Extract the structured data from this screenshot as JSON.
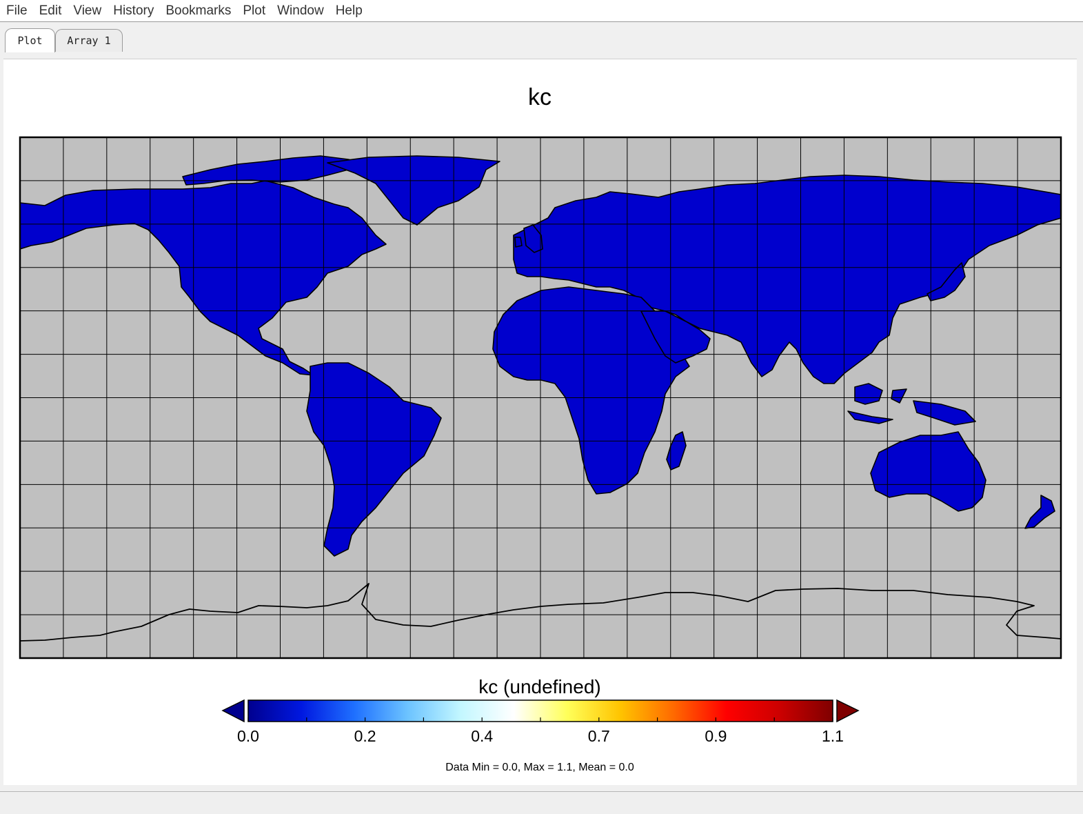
{
  "menu": [
    "File",
    "Edit",
    "View",
    "History",
    "Bookmarks",
    "Plot",
    "Window",
    "Help"
  ],
  "tabs": [
    {
      "label": "Plot",
      "active": true
    },
    {
      "label": "Array 1",
      "active": false
    }
  ],
  "plot": {
    "title": "kc",
    "ocean_color": "#c0c0c0",
    "land_color": "#0000cd",
    "grid": true,
    "colorbar": {
      "title": "kc (undefined)",
      "ticks": [
        "0.0",
        "0.2",
        "0.4",
        "0.7",
        "0.9",
        "1.1"
      ],
      "extend": "both",
      "colors": [
        "#00008f",
        "#0018e0",
        "#1f70ff",
        "#6cc3ff",
        "#c3f7ff",
        "#ffffff",
        "#ffff5a",
        "#ffc400",
        "#ff6a00",
        "#ff0000",
        "#cc0000",
        "#7f0000"
      ]
    },
    "stats": "Data Min = 0.0, Max = 1.1, Mean = 0.0"
  }
}
